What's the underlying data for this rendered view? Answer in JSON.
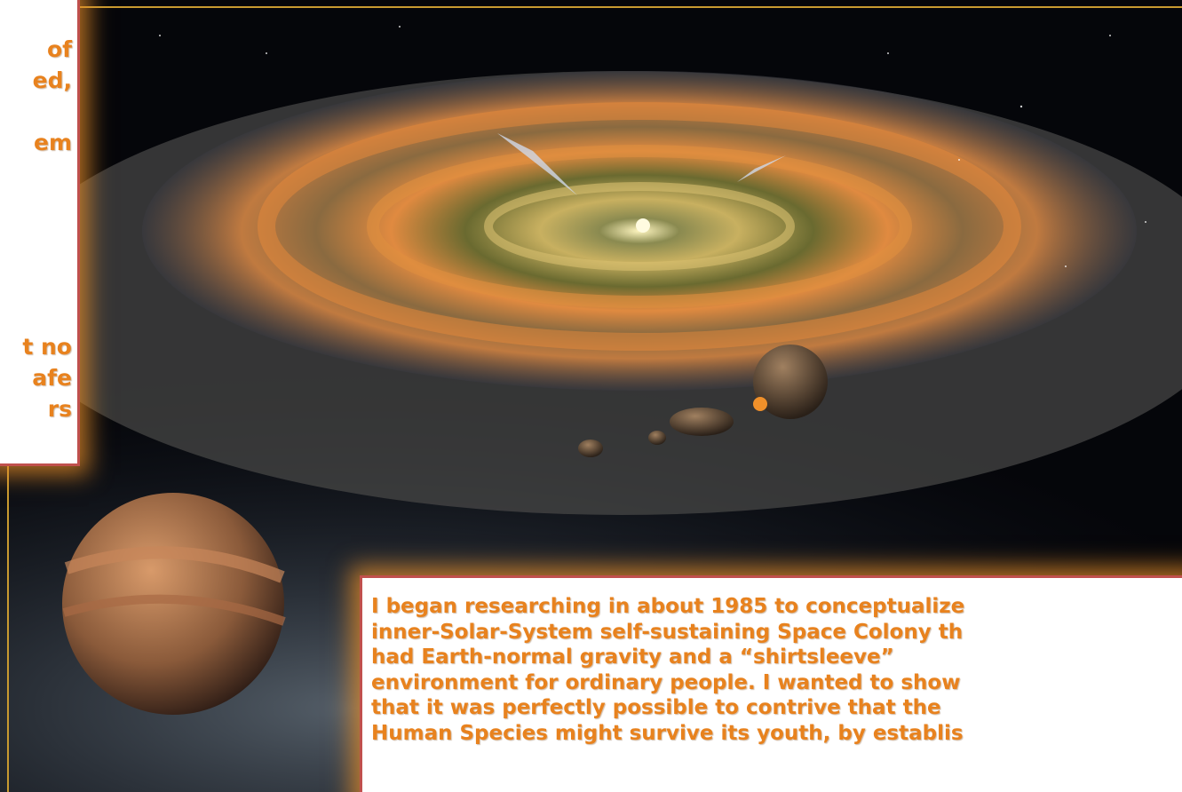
{
  "left_panel": {
    "lines": [
      "of",
      "ed,",
      "em",
      "t no",
      "afe",
      "rs"
    ]
  },
  "bottom_panel": {
    "lines": [
      "I began researching in about 1985 to conceptualize",
      "inner-Solar-System self-sustaining Space Colony th",
      "had Earth-normal gravity and a “shirtsleeve”",
      "environment for ordinary people.  I wanted to  show",
      "that it was perfectly possible to contrive that the",
      "Human Species might survive its youth, by establis"
    ]
  }
}
